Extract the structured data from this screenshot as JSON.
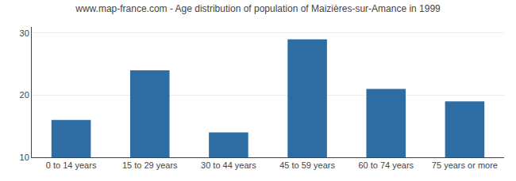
{
  "chart_data": {
    "type": "bar",
    "title": "www.map-france.com - Age distribution of population of Maizières-sur-Amance in 1999",
    "categories": [
      "0 to 14 years",
      "15 to 29 years",
      "30 to 44 years",
      "45 to 59 years",
      "60 to 74 years",
      "75 years or more"
    ],
    "values": [
      16,
      24,
      14,
      29,
      21,
      19
    ],
    "color": "#2E6DA4",
    "ylim": [
      10,
      31
    ],
    "yticks": [
      10,
      20,
      30
    ],
    "grid": true
  }
}
